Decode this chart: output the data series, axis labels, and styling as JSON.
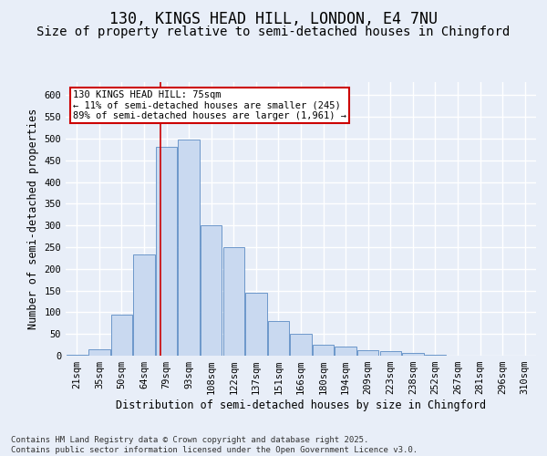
{
  "title_line1": "130, KINGS HEAD HILL, LONDON, E4 7NU",
  "title_line2": "Size of property relative to semi-detached houses in Chingford",
  "xlabel": "Distribution of semi-detached houses by size in Chingford",
  "ylabel": "Number of semi-detached properties",
  "categories": [
    "21sqm",
    "35sqm",
    "50sqm",
    "64sqm",
    "79sqm",
    "93sqm",
    "108sqm",
    "122sqm",
    "137sqm",
    "151sqm",
    "166sqm",
    "180sqm",
    "194sqm",
    "209sqm",
    "223sqm",
    "238sqm",
    "252sqm",
    "267sqm",
    "281sqm",
    "296sqm",
    "310sqm"
  ],
  "values": [
    3,
    15,
    95,
    233,
    480,
    498,
    300,
    250,
    145,
    80,
    50,
    25,
    20,
    12,
    10,
    6,
    3,
    1,
    0,
    0,
    0
  ],
  "bar_color": "#c9d9f0",
  "bar_edge_color": "#5b8bc4",
  "background_color": "#e8eef8",
  "grid_color": "#ffffff",
  "red_line_index": 3.72,
  "annotation_text": "130 KINGS HEAD HILL: 75sqm\n← 11% of semi-detached houses are smaller (245)\n89% of semi-detached houses are larger (1,961) →",
  "annotation_box_color": "#ffffff",
  "annotation_box_edge": "#cc0000",
  "ylim": [
    0,
    630
  ],
  "yticks": [
    0,
    50,
    100,
    150,
    200,
    250,
    300,
    350,
    400,
    450,
    500,
    550,
    600
  ],
  "footer": "Contains HM Land Registry data © Crown copyright and database right 2025.\nContains public sector information licensed under the Open Government Licence v3.0.",
  "title_fontsize": 12,
  "subtitle_fontsize": 10,
  "axis_label_fontsize": 8.5,
  "tick_fontsize": 7.5,
  "footer_fontsize": 6.5,
  "annotation_fontsize": 7.5
}
